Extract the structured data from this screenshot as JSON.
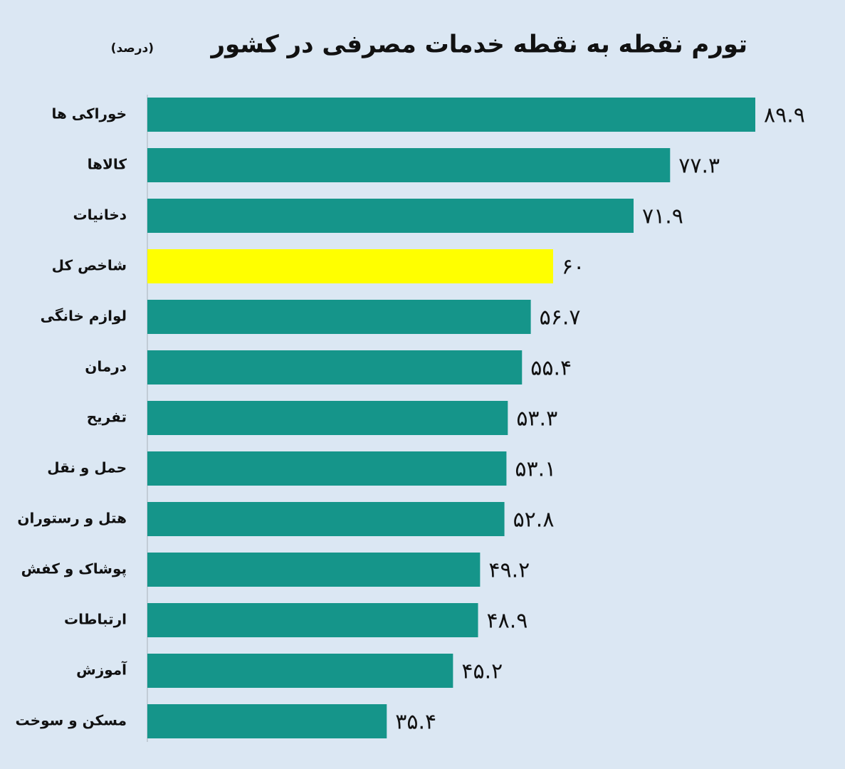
{
  "chart_data": {
    "type": "bar",
    "orientation": "horizontal",
    "title": "تورم نقطه به نقطه خدمات مصرفی در کشور",
    "subtitle": "(درصد)",
    "categories": [
      "خوراکی ها",
      "کالاها",
      "دخانیات",
      "شاخص کل",
      "لوازم خانگی",
      "درمان",
      "تفریح",
      "حمل و نقل",
      "هتل و رستوران",
      "پوشاک و کفش",
      "ارتباطات",
      "آموزش",
      "مسکن و سوخت"
    ],
    "values": [
      89.9,
      77.3,
      71.9,
      60,
      56.7,
      55.4,
      53.3,
      53.1,
      52.8,
      49.2,
      48.9,
      45.2,
      35.4
    ],
    "value_labels": [
      "۸۹.۹",
      "۷۷.۳",
      "۷۱.۹",
      "۶۰",
      "۵۶.۷",
      "۵۵.۴",
      "۵۳.۳",
      "۵۳.۱",
      "۵۲.۸",
      "۴۹.۲",
      "۴۸.۹",
      "۴۵.۲",
      "۳۵.۴"
    ],
    "colors": [
      "#15958a",
      "#15958a",
      "#15958a",
      "#ffff00",
      "#15958a",
      "#15958a",
      "#15958a",
      "#15958a",
      "#15958a",
      "#15958a",
      "#15958a",
      "#15958a",
      "#15958a"
    ]
  }
}
